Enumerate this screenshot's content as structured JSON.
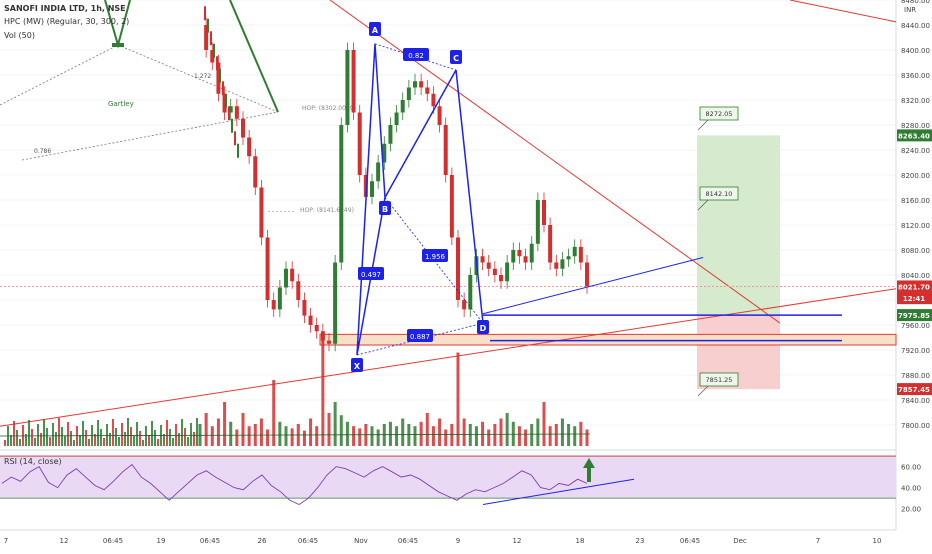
{
  "header": {
    "symbol_line": "SANOFI INDIA LTD, 1h, NSE",
    "indicator_1": "HPC (MW) (Regular, 30, 300, 2)",
    "indicator_2": "Vol (50)",
    "rsi_label": "RSI (14, close)"
  },
  "colors": {
    "up": "#2e7d32",
    "down": "#d32f2f",
    "pattern": "#1e22e6",
    "trendline": "#e53935",
    "rsi_line": "#7b3fa8",
    "rsi_band": "#ead9f5",
    "target_zone": "#cfe8c6",
    "stop_zone": "#f6c7c7"
  },
  "chart_data": [
    {
      "type": "candlestick",
      "title": "SANOFI INDIA LTD, 1h, NSE",
      "ylim": [
        7760,
        8480
      ],
      "y_ticks": [
        7800,
        7840,
        7880,
        7920,
        7960,
        8000,
        8040,
        8080,
        8120,
        8160,
        8200,
        8240,
        8280,
        8320,
        8360,
        8400,
        8440,
        8480
      ],
      "x_ticks": [
        "7",
        "12",
        "06:45",
        "19",
        "06:45",
        "26",
        "06:45",
        "Nov",
        "06:45",
        "9",
        "12",
        "18",
        "23",
        "06:45",
        "Dec",
        "7",
        "10"
      ],
      "currency": "INR",
      "price_labels": [
        {
          "label": "8263.40",
          "value": 8263.4,
          "color": "#2e7d32"
        },
        {
          "label": "8021.70",
          "value": 8021.7,
          "color": "#d32f2f"
        },
        {
          "label": "12:41",
          "value": 8003,
          "color": "#d32f2f"
        },
        {
          "label": "7975.85",
          "value": 7975.85,
          "color": "#2e7d32"
        },
        {
          "label": "7857.45",
          "value": 7857.45,
          "color": "#d32f2f"
        }
      ],
      "harmonic_points": [
        {
          "label": "X",
          "price": 7912
        },
        {
          "label": "A",
          "price": 8410
        },
        {
          "label": "B",
          "price": 8164
        },
        {
          "label": "C",
          "price": 8368
        },
        {
          "label": "D",
          "price": 7963
        }
      ],
      "ratios": [
        "0.82",
        "1.956",
        "0.497",
        "0.887"
      ],
      "prior_pattern": {
        "name": "Gartley",
        "ratios": [
          "1.272",
          "0.786"
        ]
      },
      "hop_labels": [
        "HOP: (8302.0059)",
        "HOP: (8141.6249)"
      ],
      "targets": [
        {
          "label": "8272.05",
          "value": 8272.05
        },
        {
          "label": "8142.10",
          "value": 8142.1
        },
        {
          "label": "7851.25",
          "value": 7851.25
        }
      ],
      "support_lines": [
        7975.85,
        7935
      ],
      "series": [
        {
          "name": "Price",
          "values": [
            8440,
            8400,
            8380,
            8330,
            8300,
            8310,
            8290,
            8260,
            8230,
            8180,
            8100,
            8000,
            7985,
            8020,
            8050,
            8030,
            8000,
            7975,
            7960,
            7950,
            7935,
            7930,
            8060,
            8280,
            8400,
            8300,
            8200,
            8165,
            8190,
            8220,
            8250,
            8280,
            8300,
            8320,
            8340,
            8350,
            8340,
            8330,
            8310,
            8280,
            8200,
            8100,
            8000,
            7985,
            8040,
            8070,
            8060,
            8050,
            8040,
            8030,
            8060,
            8080,
            8070,
            8060,
            8090,
            8160,
            8120,
            8060,
            8050,
            8065,
            8070,
            8085,
            8060,
            8022
          ]
        }
      ]
    },
    {
      "type": "bar",
      "title": "Vol (50)",
      "series": [
        {
          "name": "Vol (50)",
          "values": [
            20,
            30,
            18,
            25,
            40,
            22,
            15,
            30,
            18,
            20,
            25,
            15,
            60,
            22,
            18,
            16,
            20,
            14,
            25,
            18,
            100,
            30,
            40,
            28,
            22,
            18,
            16,
            20,
            18,
            15,
            20,
            22,
            18,
            25,
            20,
            18,
            22,
            30,
            18,
            25,
            15,
            20,
            85,
            25,
            20,
            18,
            22,
            15,
            20,
            25,
            30,
            22,
            18,
            15,
            20,
            25,
            40,
            18,
            20,
            25,
            20,
            18,
            22,
            15
          ]
        }
      ]
    },
    {
      "type": "line",
      "title": "RSI (14, close)",
      "ylim": [
        14,
        71
      ],
      "y_ticks": [
        20,
        40,
        60
      ],
      "bands": [
        30,
        70
      ],
      "series": [
        {
          "name": "RSI (14, close)",
          "values": [
            44,
            50,
            46,
            55,
            60,
            45,
            40,
            52,
            58,
            50,
            42,
            38,
            46,
            55,
            62,
            50,
            44,
            36,
            28,
            36,
            44,
            52,
            56,
            50,
            45,
            40,
            38,
            46,
            52,
            42,
            36,
            28,
            24,
            30,
            40,
            52,
            60,
            58,
            54,
            50,
            56,
            60,
            55,
            50,
            52,
            48,
            42,
            36,
            32,
            28,
            34,
            38,
            36,
            40,
            44,
            50,
            56,
            52,
            40,
            38,
            44,
            42,
            48,
            44
          ]
        }
      ]
    }
  ]
}
